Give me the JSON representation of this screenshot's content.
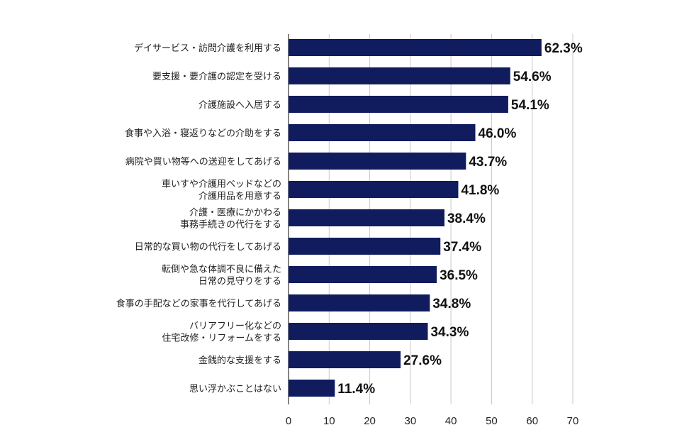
{
  "chart_data": {
    "type": "bar",
    "orientation": "horizontal",
    "categories": [
      "デイサービス・訪問介護を利用する",
      "要支援・要介護の認定を受ける",
      "介護施設へ入居する",
      "食事や入浴・寝返りなどの介助をする",
      "病院や買い物等への送迎をしてあげる",
      "車いすや介護用ベッドなどの\n介護用品を用意する",
      "介護・医療にかかわる\n事務手続きの代行をする",
      "日常的な買い物の代行をしてあげる",
      "転倒や急な体調不良に備えた\n日常の見守りをする",
      "食事の手配などの家事を代行してあげる",
      "バリアフリー化などの\n住宅改修・リフォームをする",
      "金銭的な支援をする",
      "思い浮かぶことはない"
    ],
    "values": [
      62.3,
      54.6,
      54.1,
      46.0,
      43.7,
      41.8,
      38.4,
      37.4,
      36.5,
      34.8,
      34.3,
      27.6,
      11.4
    ],
    "data_labels": [
      "62.3%",
      "54.6%",
      "54.1%",
      "46.0%",
      "43.7%",
      "41.8%",
      "38.4%",
      "37.4%",
      "36.5%",
      "34.8%",
      "34.3%",
      "27.6%",
      "11.4%"
    ],
    "xlim": [
      0,
      70
    ],
    "xticks": [
      "0",
      "10",
      "20",
      "30",
      "40",
      "50",
      "60",
      "70"
    ],
    "grid": true,
    "bar_color": "#101c5e",
    "grid_color": "#c8c8c8",
    "title": "",
    "xlabel": "",
    "ylabel": ""
  }
}
